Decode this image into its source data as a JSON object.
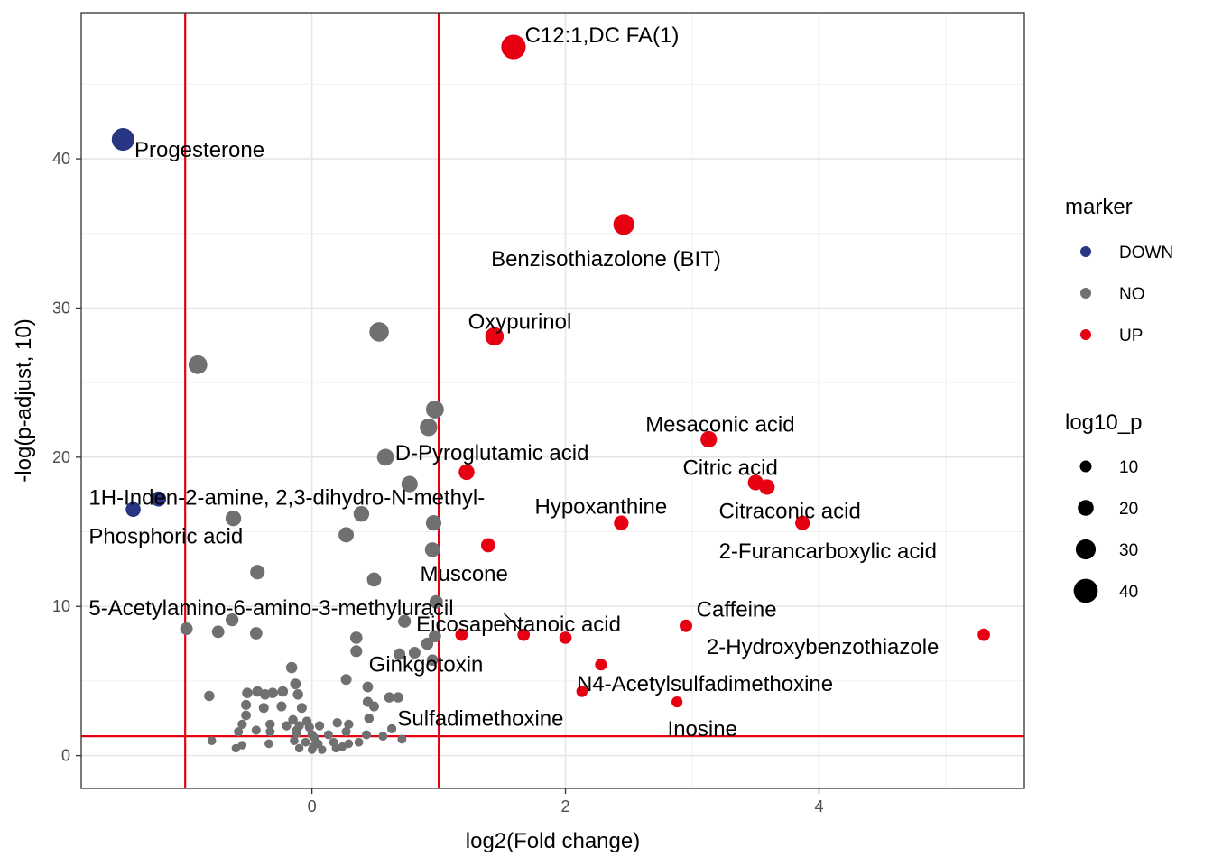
{
  "chart_data": {
    "type": "scatter",
    "xlabel": "log2(Fold change)",
    "ylabel": "-log(p-adjust, 10)",
    "xlim": [
      -1.82,
      5.62
    ],
    "ylim": [
      -2.2,
      49.8
    ],
    "x_ticks": [
      0,
      2,
      4
    ],
    "y_ticks": [
      0,
      10,
      20,
      30,
      40
    ],
    "grid": true,
    "threshold_lines": {
      "vertical": [
        -1,
        1
      ],
      "horizontal": [
        1.3
      ]
    },
    "colors": {
      "DOWN": "#283583",
      "NO": "#707070",
      "UP": "#e60012",
      "threshold": "#e60012"
    },
    "legend_color": {
      "title": "marker",
      "position": "right",
      "entries": [
        {
          "label": "DOWN",
          "color": "#283583"
        },
        {
          "label": "NO",
          "color": "#707070"
        },
        {
          "label": "UP",
          "color": "#e60012"
        }
      ]
    },
    "legend_size": {
      "title": "log10_p",
      "position": "right",
      "entries": [
        {
          "label": "10",
          "value": 10
        },
        {
          "label": "20",
          "value": 20
        },
        {
          "label": "30",
          "value": 30
        },
        {
          "label": "40",
          "value": 40
        }
      ]
    },
    "points": [
      {
        "x": 1.59,
        "y": 47.5,
        "marker": "UP",
        "label": "C12:1,DC FA(1)",
        "lx": 1.68,
        "ly": 48.3,
        "anchor": "start"
      },
      {
        "x": -1.49,
        "y": 41.3,
        "marker": "DOWN",
        "label": "Progesterone",
        "lx": -1.4,
        "ly": 40.6,
        "anchor": "start"
      },
      {
        "x": 2.46,
        "y": 35.6,
        "marker": "UP",
        "label": "Benzisothiazolone (BIT)",
        "lx": 2.32,
        "ly": 33.3,
        "anchor": "middle"
      },
      {
        "x": 1.44,
        "y": 28.1,
        "marker": "UP",
        "label": "Oxypurinol",
        "lx": 1.64,
        "ly": 29.1,
        "anchor": "middle"
      },
      {
        "x": 3.13,
        "y": 21.2,
        "marker": "UP",
        "label": "Mesaconic acid",
        "lx": 3.22,
        "ly": 22.2,
        "anchor": "middle"
      },
      {
        "x": 1.22,
        "y": 19.0,
        "marker": "UP",
        "label": "D-Pyroglutamic acid",
        "lx": 1.42,
        "ly": 20.3,
        "anchor": "middle"
      },
      {
        "x": 3.5,
        "y": 18.3,
        "marker": "UP",
        "label": "Citric acid",
        "lx": 3.3,
        "ly": 19.3,
        "anchor": "middle"
      },
      {
        "x": 3.59,
        "y": 18.0,
        "marker": "UP",
        "label": "Citraconic acid",
        "lx": 3.77,
        "ly": 16.4,
        "anchor": "middle"
      },
      {
        "x": -1.41,
        "y": 16.5,
        "marker": "DOWN",
        "label": "Phosphoric acid",
        "lx": -1.76,
        "ly": 14.7,
        "anchor": "start"
      },
      {
        "x": -1.21,
        "y": 17.2,
        "marker": "DOWN",
        "label": "1H-Inden-2-amine, 2,3-dihydro-N-methyl-",
        "lx": -1.76,
        "ly": 17.3,
        "anchor": "start"
      },
      {
        "x": 2.44,
        "y": 15.6,
        "marker": "UP",
        "label": "Hypoxanthine",
        "lx": 2.28,
        "ly": 16.7,
        "anchor": "middle"
      },
      {
        "x": 3.87,
        "y": 15.6,
        "marker": "UP",
        "label": "2-Furancarboxylic acid",
        "lx": 4.07,
        "ly": 13.7,
        "anchor": "middle"
      },
      {
        "x": 1.39,
        "y": 14.1,
        "marker": "UP",
        "label": "Muscone",
        "lx": 1.2,
        "ly": 12.2,
        "anchor": "middle"
      },
      {
        "x": 2.95,
        "y": 8.7,
        "marker": "UP",
        "label": "Caffeine",
        "lx": 3.35,
        "ly": 9.8,
        "anchor": "middle"
      },
      {
        "x": 1.18,
        "y": 8.1,
        "marker": "UP",
        "label": "5-Acetylamino-6-amino-3-methyluracil",
        "lx": -1.76,
        "ly": 9.9,
        "anchor": "start"
      },
      {
        "x": 1.67,
        "y": 8.1,
        "marker": "UP",
        "label": "Eicosapentanoic acid",
        "lx": 1.63,
        "ly": 8.8,
        "anchor": "middle",
        "leader": true
      },
      {
        "x": 5.3,
        "y": 8.1,
        "marker": "UP",
        "label": "2-Hydroxybenzothiazole",
        "lx": 4.03,
        "ly": 7.3,
        "anchor": "middle"
      },
      {
        "x": 2.0,
        "y": 7.9,
        "marker": "UP",
        "label": ""
      },
      {
        "x": 2.28,
        "y": 6.1,
        "marker": "UP",
        "label": "N4-Acetylsulfadimethoxine",
        "lx": 3.1,
        "ly": 4.8,
        "anchor": "middle"
      },
      {
        "x": 2.13,
        "y": 4.3,
        "marker": "UP",
        "label": "Sulfadimethoxine",
        "lx": 1.33,
        "ly": 2.5,
        "anchor": "middle"
      },
      {
        "x": 2.88,
        "y": 3.6,
        "marker": "UP",
        "label": "Inosine",
        "lx": 3.08,
        "ly": 1.8,
        "anchor": "middle"
      },
      {
        "x": 0.95,
        "y": 6.4,
        "marker": "NO",
        "label": "Ginkgotoxin",
        "lx": 0.9,
        "ly": 6.1,
        "anchor": "middle"
      },
      {
        "x": 0.53,
        "y": 28.4,
        "marker": "NO",
        "label": ""
      },
      {
        "x": -0.9,
        "y": 26.2,
        "marker": "NO",
        "label": ""
      },
      {
        "x": 0.97,
        "y": 23.2,
        "marker": "NO",
        "label": ""
      },
      {
        "x": 0.92,
        "y": 22.0,
        "marker": "NO",
        "label": ""
      },
      {
        "x": 0.58,
        "y": 20.0,
        "marker": "NO",
        "label": ""
      },
      {
        "x": 0.77,
        "y": 18.2,
        "marker": "NO",
        "label": ""
      },
      {
        "x": 0.39,
        "y": 16.2,
        "marker": "NO",
        "label": ""
      },
      {
        "x": -0.62,
        "y": 15.9,
        "marker": "NO",
        "label": ""
      },
      {
        "x": 0.96,
        "y": 15.6,
        "marker": "NO",
        "label": ""
      },
      {
        "x": 0.27,
        "y": 14.8,
        "marker": "NO",
        "label": ""
      },
      {
        "x": 0.95,
        "y": 13.8,
        "marker": "NO",
        "label": ""
      },
      {
        "x": -0.43,
        "y": 12.3,
        "marker": "NO",
        "label": ""
      },
      {
        "x": 0.49,
        "y": 11.8,
        "marker": "NO",
        "label": ""
      },
      {
        "x": 0.98,
        "y": 10.3,
        "marker": "NO",
        "label": ""
      },
      {
        "x": -0.63,
        "y": 9.1,
        "marker": "NO",
        "label": ""
      },
      {
        "x": 0.73,
        "y": 9.0,
        "marker": "NO",
        "label": ""
      },
      {
        "x": -0.99,
        "y": 8.5,
        "marker": "NO",
        "label": ""
      },
      {
        "x": -0.74,
        "y": 8.3,
        "marker": "NO",
        "label": ""
      },
      {
        "x": -0.44,
        "y": 8.2,
        "marker": "NO",
        "label": ""
      },
      {
        "x": 0.97,
        "y": 8.0,
        "marker": "NO",
        "label": ""
      },
      {
        "x": 0.35,
        "y": 7.9,
        "marker": "NO",
        "label": ""
      },
      {
        "x": 0.91,
        "y": 7.5,
        "marker": "NO",
        "label": ""
      },
      {
        "x": 0.35,
        "y": 7.0,
        "marker": "NO",
        "label": ""
      },
      {
        "x": 0.69,
        "y": 6.8,
        "marker": "NO",
        "label": ""
      },
      {
        "x": 0.81,
        "y": 6.9,
        "marker": "NO",
        "label": ""
      },
      {
        "x": -0.16,
        "y": 5.9,
        "marker": "NO",
        "label": ""
      },
      {
        "x": 0.27,
        "y": 5.1,
        "marker": "NO",
        "label": ""
      },
      {
        "x": -0.13,
        "y": 4.8,
        "marker": "NO",
        "label": ""
      },
      {
        "x": -0.51,
        "y": 4.2,
        "marker": "NO",
        "label": ""
      },
      {
        "x": -0.43,
        "y": 4.3,
        "marker": "NO",
        "label": ""
      },
      {
        "x": -0.37,
        "y": 4.1,
        "marker": "NO",
        "label": ""
      },
      {
        "x": -0.31,
        "y": 4.2,
        "marker": "NO",
        "label": ""
      },
      {
        "x": -0.23,
        "y": 4.3,
        "marker": "NO",
        "label": ""
      },
      {
        "x": -0.11,
        "y": 4.1,
        "marker": "NO",
        "label": ""
      },
      {
        "x": -0.81,
        "y": 4.0,
        "marker": "NO",
        "label": ""
      },
      {
        "x": 0.44,
        "y": 4.6,
        "marker": "NO",
        "label": ""
      },
      {
        "x": 0.44,
        "y": 3.6,
        "marker": "NO",
        "label": ""
      },
      {
        "x": 0.61,
        "y": 3.9,
        "marker": "NO",
        "label": ""
      },
      {
        "x": 0.68,
        "y": 3.9,
        "marker": "NO",
        "label": ""
      },
      {
        "x": -0.52,
        "y": 3.4,
        "marker": "NO",
        "label": ""
      },
      {
        "x": -0.38,
        "y": 3.2,
        "marker": "NO",
        "label": ""
      },
      {
        "x": -0.24,
        "y": 3.3,
        "marker": "NO",
        "label": ""
      },
      {
        "x": -0.08,
        "y": 3.2,
        "marker": "NO",
        "label": ""
      },
      {
        "x": 0.49,
        "y": 3.3,
        "marker": "NO",
        "label": ""
      },
      {
        "x": -0.52,
        "y": 2.7,
        "marker": "NO",
        "label": ""
      },
      {
        "x": -0.15,
        "y": 2.4,
        "marker": "NO",
        "label": ""
      },
      {
        "x": -0.04,
        "y": 2.3,
        "marker": "NO",
        "label": ""
      },
      {
        "x": 0.45,
        "y": 2.5,
        "marker": "NO",
        "label": ""
      },
      {
        "x": -0.55,
        "y": 2.1,
        "marker": "NO",
        "label": ""
      },
      {
        "x": -0.33,
        "y": 2.1,
        "marker": "NO",
        "label": ""
      },
      {
        "x": -0.2,
        "y": 2.0,
        "marker": "NO",
        "label": ""
      },
      {
        "x": -0.1,
        "y": 2.0,
        "marker": "NO",
        "label": ""
      },
      {
        "x": -0.02,
        "y": 1.9,
        "marker": "NO",
        "label": ""
      },
      {
        "x": 0.2,
        "y": 2.2,
        "marker": "NO",
        "label": ""
      },
      {
        "x": 0.29,
        "y": 2.1,
        "marker": "NO",
        "label": ""
      },
      {
        "x": 0.63,
        "y": 1.8,
        "marker": "NO",
        "label": ""
      },
      {
        "x": -0.58,
        "y": 1.6,
        "marker": "NO",
        "label": ""
      },
      {
        "x": -0.44,
        "y": 1.7,
        "marker": "NO",
        "label": ""
      },
      {
        "x": -0.33,
        "y": 1.6,
        "marker": "NO",
        "label": ""
      },
      {
        "x": -0.12,
        "y": 1.5,
        "marker": "NO",
        "label": ""
      },
      {
        "x": 0.0,
        "y": 1.4,
        "marker": "NO",
        "label": ""
      },
      {
        "x": 0.13,
        "y": 1.4,
        "marker": "NO",
        "label": ""
      },
      {
        "x": 0.27,
        "y": 1.6,
        "marker": "NO",
        "label": ""
      },
      {
        "x": 0.43,
        "y": 1.4,
        "marker": "NO",
        "label": ""
      },
      {
        "x": 0.56,
        "y": 1.3,
        "marker": "NO",
        "label": ""
      },
      {
        "x": 0.71,
        "y": 1.1,
        "marker": "NO",
        "label": ""
      },
      {
        "x": -0.79,
        "y": 1.0,
        "marker": "NO",
        "label": ""
      },
      {
        "x": -0.55,
        "y": 0.7,
        "marker": "NO",
        "label": ""
      },
      {
        "x": -0.34,
        "y": 0.8,
        "marker": "NO",
        "label": ""
      },
      {
        "x": -0.14,
        "y": 1.0,
        "marker": "NO",
        "label": ""
      },
      {
        "x": -0.05,
        "y": 0.9,
        "marker": "NO",
        "label": ""
      },
      {
        "x": 0.05,
        "y": 0.8,
        "marker": "NO",
        "label": ""
      },
      {
        "x": 0.17,
        "y": 0.9,
        "marker": "NO",
        "label": ""
      },
      {
        "x": 0.29,
        "y": 0.8,
        "marker": "NO",
        "label": ""
      },
      {
        "x": 0.37,
        "y": 0.9,
        "marker": "NO",
        "label": ""
      },
      {
        "x": -0.6,
        "y": 0.5,
        "marker": "NO",
        "label": ""
      },
      {
        "x": -0.1,
        "y": 0.5,
        "marker": "NO",
        "label": ""
      },
      {
        "x": 0.0,
        "y": 0.4,
        "marker": "NO",
        "label": ""
      },
      {
        "x": 0.08,
        "y": 0.4,
        "marker": "NO",
        "label": ""
      },
      {
        "x": 0.19,
        "y": 0.5,
        "marker": "NO",
        "label": ""
      },
      {
        "x": 0.24,
        "y": 0.6,
        "marker": "NO",
        "label": ""
      },
      {
        "x": -0.12,
        "y": 1.7,
        "marker": "NO",
        "label": ""
      },
      {
        "x": 0.06,
        "y": 2.0,
        "marker": "NO",
        "label": ""
      },
      {
        "x": 0.02,
        "y": 1.2,
        "marker": "NO",
        "label": ""
      },
      {
        "x": 0.01,
        "y": 0.6,
        "marker": "NO",
        "label": ""
      }
    ]
  }
}
